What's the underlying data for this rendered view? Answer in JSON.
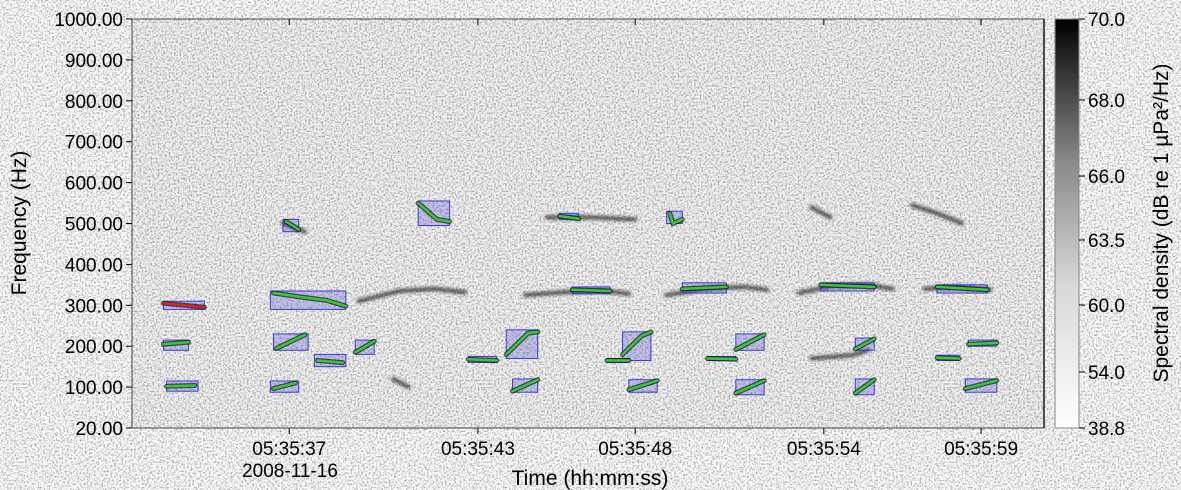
{
  "chart_data": {
    "type": "heatmap",
    "subtype": "spectrogram",
    "xlabel": "Time (hh:mm:ss)",
    "ylabel": "Frequency (Hz)",
    "date_label": "2008-11-16",
    "x_ticks": [
      "05:35:37",
      "05:35:43",
      "05:35:48",
      "05:35:54",
      "05:35:59"
    ],
    "x_tick_seconds": [
      37,
      43,
      48,
      54,
      59
    ],
    "xlim": [
      "05:35:32",
      "05:36:00"
    ],
    "y_ticks": [
      1000,
      900,
      800,
      700,
      600,
      500,
      400,
      300,
      200,
      100,
      20
    ],
    "y_tick_labels": [
      "1000.00",
      "900.00",
      "800.00",
      "700.00",
      "600.00",
      "500.00",
      "400.00",
      "300.00",
      "200.00",
      "100.00",
      "20.00"
    ],
    "ylim": [
      20,
      1000
    ],
    "colorbar": {
      "label": "Spectral density (dB re 1 µPa²/Hz)",
      "tick_labels": [
        "70.0",
        "68.0",
        "66.0",
        "63.5",
        "60.0",
        "54.0",
        "38.8"
      ],
      "range": [
        38.8,
        70.0
      ],
      "colormap": "grayscale, dark = high"
    },
    "colors": {
      "detection_box": "#3a3ad8",
      "contour": "#33cc33",
      "highlight_contour": "#e02020"
    },
    "detections": [
      {
        "t0": 33.0,
        "t1": 34.3,
        "f0": 290,
        "f1": 310,
        "path": [
          [
            33.0,
            305
          ],
          [
            34.3,
            295
          ]
        ],
        "color": "red"
      },
      {
        "t0": 33.0,
        "t1": 33.8,
        "f0": 190,
        "f1": 215,
        "path": [
          [
            33.0,
            205
          ],
          [
            33.8,
            210
          ]
        ]
      },
      {
        "t0": 33.1,
        "t1": 34.1,
        "f0": 92,
        "f1": 115,
        "path": [
          [
            33.1,
            102
          ],
          [
            34.0,
            104
          ]
        ]
      },
      {
        "t0": 36.4,
        "t1": 37.3,
        "f0": 90,
        "f1": 115,
        "path": [
          [
            36.5,
            97
          ],
          [
            37.2,
            110
          ]
        ]
      },
      {
        "t0": 36.5,
        "t1": 37.6,
        "f0": 190,
        "f1": 230,
        "path": [
          [
            36.6,
            195
          ],
          [
            37.5,
            228
          ]
        ]
      },
      {
        "t0": 37.8,
        "t1": 38.8,
        "f0": 150,
        "f1": 180,
        "path": [
          [
            37.9,
            165
          ],
          [
            38.7,
            160
          ]
        ]
      },
      {
        "t0": 36.4,
        "t1": 38.8,
        "f0": 290,
        "f1": 335,
        "path": [
          [
            36.5,
            330
          ],
          [
            37.4,
            320
          ],
          [
            38.2,
            312
          ],
          [
            38.8,
            298
          ]
        ]
      },
      {
        "t0": 36.8,
        "t1": 37.3,
        "f0": 480,
        "f1": 510,
        "path": [
          [
            36.9,
            505
          ],
          [
            37.3,
            485
          ]
        ]
      },
      {
        "t0": 39.1,
        "t1": 39.7,
        "f0": 180,
        "f1": 215,
        "path": [
          [
            39.1,
            185
          ],
          [
            39.7,
            212
          ]
        ]
      },
      {
        "t0": 41.1,
        "t1": 42.1,
        "f0": 495,
        "f1": 555,
        "path": [
          [
            41.1,
            550
          ],
          [
            41.7,
            510
          ],
          [
            42.1,
            505
          ]
        ]
      },
      {
        "t0": 42.7,
        "t1": 43.6,
        "f0": 160,
        "f1": 175,
        "path": [
          [
            42.7,
            168
          ],
          [
            43.6,
            165
          ]
        ]
      },
      {
        "t0": 44.1,
        "t1": 44.9,
        "f0": 90,
        "f1": 120,
        "path": [
          [
            44.1,
            92
          ],
          [
            44.9,
            118
          ]
        ]
      },
      {
        "t0": 43.9,
        "t1": 44.9,
        "f0": 170,
        "f1": 240,
        "path": [
          [
            43.9,
            180
          ],
          [
            44.6,
            232
          ],
          [
            44.9,
            235
          ]
        ]
      },
      {
        "t0": 45.6,
        "t1": 46.2,
        "f0": 510,
        "f1": 525,
        "path": [
          [
            45.6,
            518
          ],
          [
            46.2,
            512
          ]
        ]
      },
      {
        "t0": 46.0,
        "t1": 47.2,
        "f0": 328,
        "f1": 345,
        "path": [
          [
            46.0,
            338
          ],
          [
            47.2,
            335
          ]
        ]
      },
      {
        "t0": 47.1,
        "t1": 47.8,
        "f0": 160,
        "f1": 170,
        "path": [
          [
            47.1,
            165
          ],
          [
            47.8,
            165
          ]
        ]
      },
      {
        "t0": 47.6,
        "t1": 48.5,
        "f0": 165,
        "f1": 235,
        "path": [
          [
            47.6,
            180
          ],
          [
            48.2,
            225
          ],
          [
            48.5,
            235
          ]
        ]
      },
      {
        "t0": 47.8,
        "t1": 48.7,
        "f0": 90,
        "f1": 118,
        "path": [
          [
            47.8,
            95
          ],
          [
            48.7,
            116
          ]
        ]
      },
      {
        "t0": 49.0,
        "t1": 49.5,
        "f0": 500,
        "f1": 530,
        "path": [
          [
            49.1,
            525
          ],
          [
            49.2,
            500
          ],
          [
            49.5,
            510
          ]
        ]
      },
      {
        "t0": 49.5,
        "t1": 50.9,
        "f0": 330,
        "f1": 355,
        "path": [
          [
            49.5,
            340
          ],
          [
            50.9,
            345
          ]
        ]
      },
      {
        "t0": 50.3,
        "t1": 51.2,
        "f0": 165,
        "f1": 175,
        "path": [
          [
            50.3,
            170
          ],
          [
            51.2,
            168
          ]
        ]
      },
      {
        "t0": 51.2,
        "t1": 52.1,
        "f0": 190,
        "f1": 230,
        "path": [
          [
            51.2,
            192
          ],
          [
            52.1,
            228
          ]
        ]
      },
      {
        "t0": 51.2,
        "t1": 52.1,
        "f0": 85,
        "f1": 118,
        "path": [
          [
            51.2,
            88
          ],
          [
            52.1,
            116
          ]
        ]
      },
      {
        "t0": 53.9,
        "t1": 55.6,
        "f0": 335,
        "f1": 355,
        "path": [
          [
            53.9,
            350
          ],
          [
            55.6,
            345
          ]
        ]
      },
      {
        "t0": 55.0,
        "t1": 55.6,
        "f0": 190,
        "f1": 220,
        "path": [
          [
            55.0,
            193
          ],
          [
            55.6,
            218
          ]
        ]
      },
      {
        "t0": 55.0,
        "t1": 55.6,
        "f0": 85,
        "f1": 120,
        "path": [
          [
            55.0,
            88
          ],
          [
            55.6,
            118
          ]
        ]
      },
      {
        "t0": 57.6,
        "t1": 59.2,
        "f0": 330,
        "f1": 350,
        "path": [
          [
            57.6,
            345
          ],
          [
            59.2,
            338
          ]
        ]
      },
      {
        "t0": 57.6,
        "t1": 58.3,
        "f0": 165,
        "f1": 178,
        "path": [
          [
            57.6,
            172
          ],
          [
            58.3,
            170
          ]
        ]
      },
      {
        "t0": 58.6,
        "t1": 59.5,
        "f0": 200,
        "f1": 215,
        "path": [
          [
            58.6,
            205
          ],
          [
            59.5,
            208
          ]
        ]
      },
      {
        "t0": 58.5,
        "t1": 59.5,
        "f0": 90,
        "f1": 120,
        "path": [
          [
            58.5,
            97
          ],
          [
            59.5,
            116
          ]
        ]
      }
    ],
    "tracks": [
      {
        "path": [
          [
            36.8,
            500
          ],
          [
            37.5,
            480
          ]
        ]
      },
      {
        "path": [
          [
            39.2,
            310
          ],
          [
            40.5,
            335
          ],
          [
            41.6,
            340
          ],
          [
            42.6,
            332
          ]
        ]
      },
      {
        "path": [
          [
            44.5,
            325
          ],
          [
            45.7,
            332
          ],
          [
            47.0,
            336
          ],
          [
            47.8,
            328
          ]
        ]
      },
      {
        "path": [
          [
            49.0,
            325
          ],
          [
            50.2,
            340
          ],
          [
            51.5,
            345
          ],
          [
            52.2,
            338
          ]
        ]
      },
      {
        "path": [
          [
            53.2,
            330
          ],
          [
            54.3,
            348
          ],
          [
            55.4,
            350
          ],
          [
            56.2,
            340
          ]
        ]
      },
      {
        "path": [
          [
            57.2,
            340
          ],
          [
            58.3,
            345
          ],
          [
            59.3,
            338
          ]
        ]
      },
      {
        "path": [
          [
            40.3,
            120
          ],
          [
            40.8,
            100
          ]
        ]
      },
      {
        "path": [
          [
            53.6,
            170
          ],
          [
            54.9,
            178
          ],
          [
            55.4,
            190
          ]
        ]
      },
      {
        "path": [
          [
            45.2,
            515
          ],
          [
            46.6,
            515
          ],
          [
            48.0,
            510
          ]
        ]
      },
      {
        "path": [
          [
            53.6,
            540
          ],
          [
            54.2,
            515
          ]
        ]
      },
      {
        "path": [
          [
            56.8,
            545
          ],
          [
            57.6,
            525
          ],
          [
            58.4,
            500
          ]
        ]
      }
    ]
  }
}
